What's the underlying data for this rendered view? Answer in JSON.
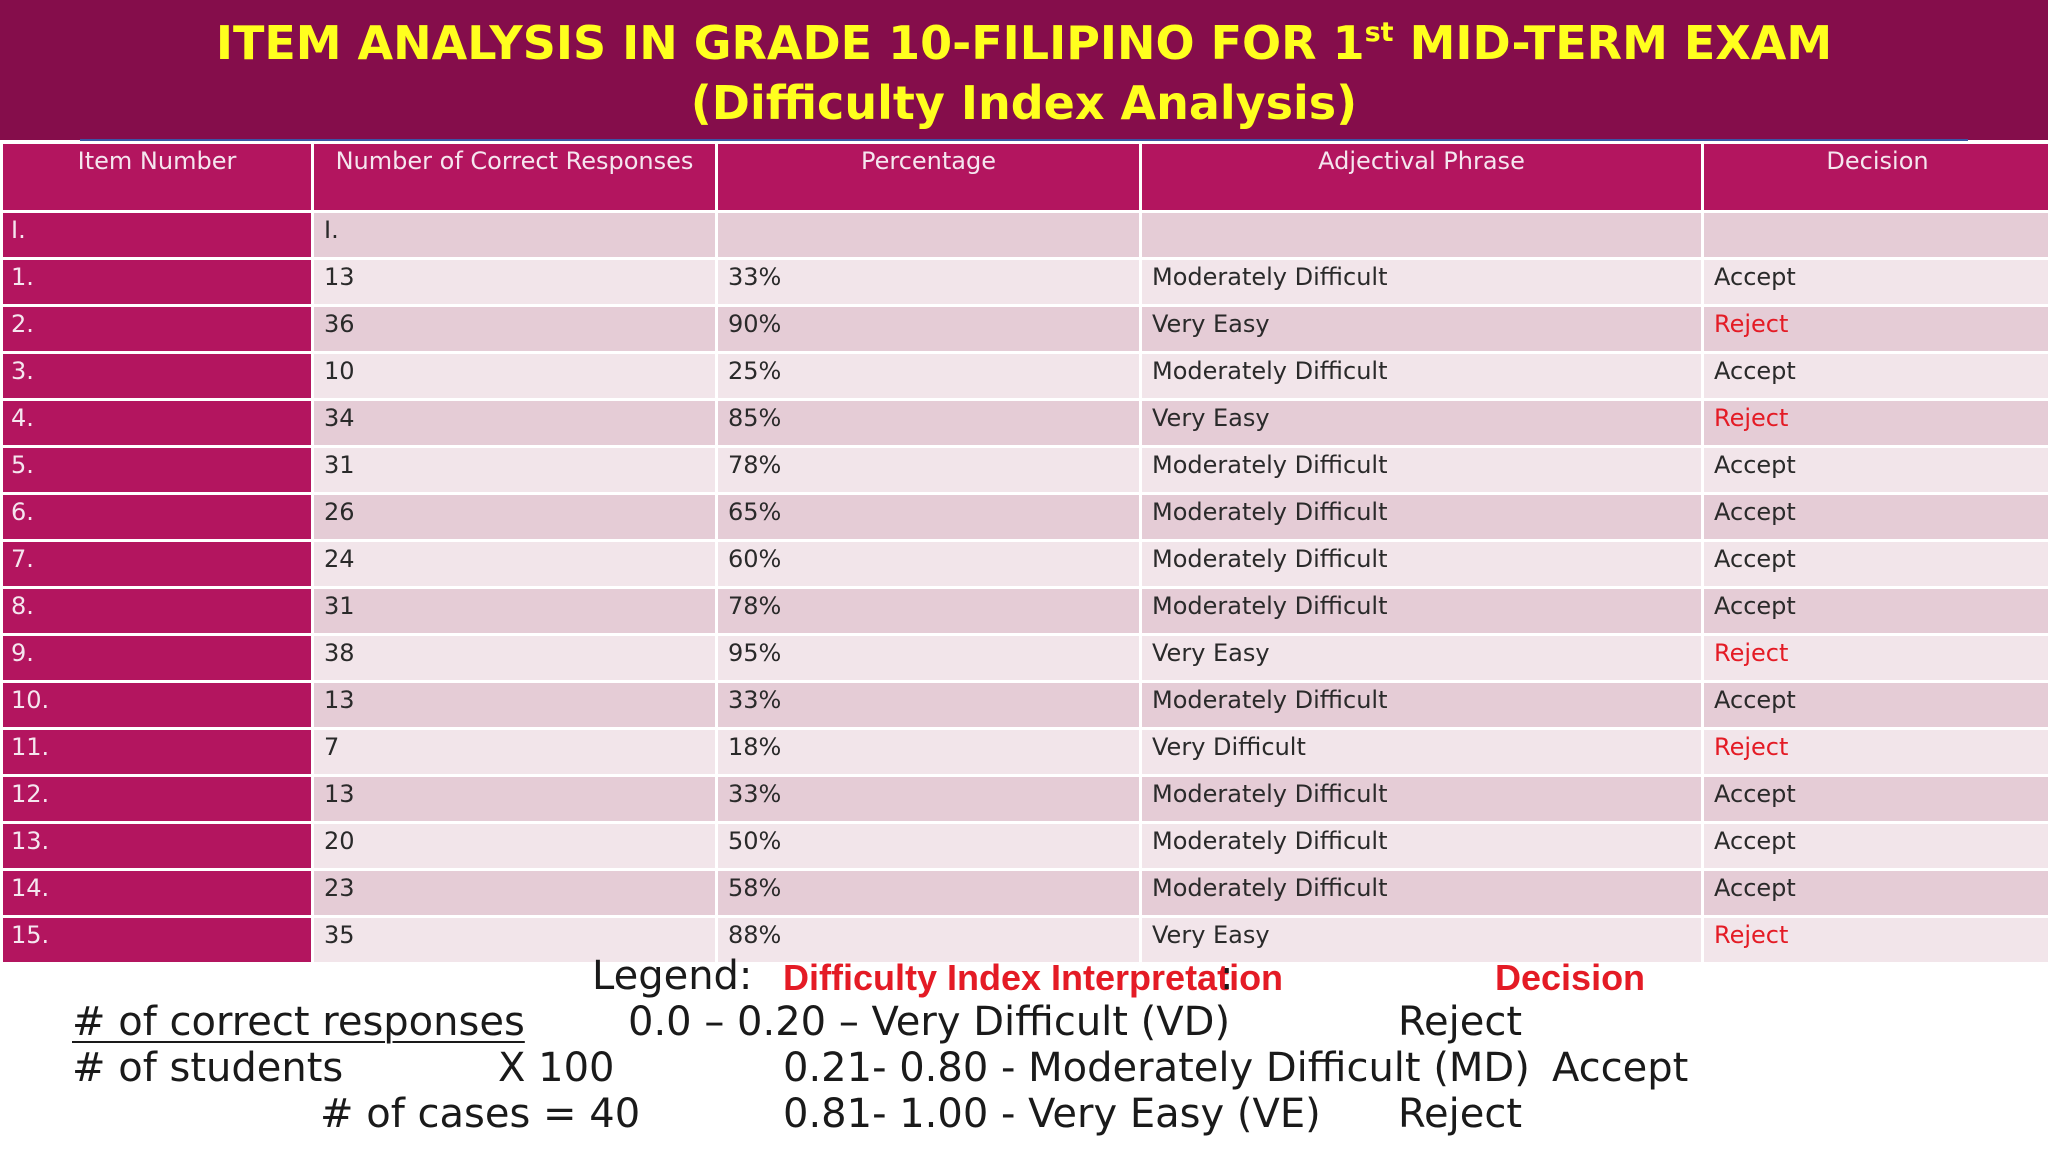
{
  "title": {
    "line1_a": "ITEM ANALYSIS IN GRADE 10-FILIPINO FOR 1",
    "line1_sup": "st",
    "line1_b": " MID-TERM EXAM",
    "line2": "(Difficulty Index Analysis)"
  },
  "table": {
    "headers": [
      "Item Number",
      "Number of Correct Responses",
      "Percentage",
      "Adjectival Phrase",
      "Decision"
    ],
    "rows": [
      {
        "item": "I.",
        "correct": "I.",
        "percent": "",
        "phrase": "",
        "decision": ""
      },
      {
        "item": "1.",
        "correct": "13",
        "percent": "33%",
        "phrase": "Moderately Difficult",
        "decision": "Accept"
      },
      {
        "item": "2.",
        "correct": "36",
        "percent": "90%",
        "phrase": "Very Easy",
        "decision": "Reject"
      },
      {
        "item": "3.",
        "correct": "10",
        "percent": "25%",
        "phrase": "Moderately Difficult",
        "decision": "Accept"
      },
      {
        "item": "4.",
        "correct": "34",
        "percent": "85%",
        "phrase": "Very  Easy",
        "decision": "Reject"
      },
      {
        "item": "5.",
        "correct": "31",
        "percent": "78%",
        "phrase": "Moderately Difficult",
        "decision": "Accept"
      },
      {
        "item": "6.",
        "correct": "26",
        "percent": "65%",
        "phrase": "Moderately Difficult",
        "decision": "Accept"
      },
      {
        "item": "7.",
        "correct": "24",
        "percent": "60%",
        "phrase": "Moderately Difficult",
        "decision": "Accept"
      },
      {
        "item": "8.",
        "correct": "31",
        "percent": "78%",
        "phrase": "Moderately Difficult",
        "decision": "Accept"
      },
      {
        "item": "9.",
        "correct": "38",
        "percent": "95%",
        "phrase": "Very Easy",
        "decision": "Reject"
      },
      {
        "item": "10.",
        "correct": "13",
        "percent": "33%",
        "phrase": "Moderately Difficult",
        "decision": "Accept"
      },
      {
        "item": "11.",
        "correct": "7",
        "percent": "18%",
        "phrase": "Very Difficult",
        "decision": "Reject"
      },
      {
        "item": "12.",
        "correct": "13",
        "percent": "33%",
        "phrase": "Moderately Difficult",
        "decision": "Accept"
      },
      {
        "item": "13.",
        "correct": "20",
        "percent": "50%",
        "phrase": "Moderately Difficult",
        "decision": "Accept"
      },
      {
        "item": "14.",
        "correct": "23",
        "percent": "58%",
        "phrase": "Moderately Difficult",
        "decision": "Accept"
      },
      {
        "item": "15.",
        "correct": "35",
        "percent": "88%",
        "phrase": "Very Easy",
        "decision": "Reject"
      }
    ]
  },
  "legend": {
    "label": "Legend:",
    "interpretation_heading": "Difficulty Index Interpretation",
    "colon": ":",
    "decision_heading": "Decision",
    "formula_numerator": "# of correct responses",
    "formula_denominator": "# of students",
    "formula_multiplier": "X  100",
    "cases": "# of cases =  40",
    "ranges": [
      {
        "text": "0.0 – 0.20 – Very Difficult  (VD)",
        "decision": "Reject"
      },
      {
        "text": "0.21- 0.80   - Moderately Difficult (MD)",
        "decision": "Accept"
      },
      {
        "text": "0.81- 1.00  - Very Easy (VE)",
        "decision": "Reject"
      }
    ]
  },
  "colors": {
    "title_bar": "#850d4b",
    "title_text": "#ffff1e",
    "header_cell": "#b3155f",
    "row_dark": "#e5ccd6",
    "row_light": "#f2e5ea",
    "reject_text": "#e41b25"
  }
}
